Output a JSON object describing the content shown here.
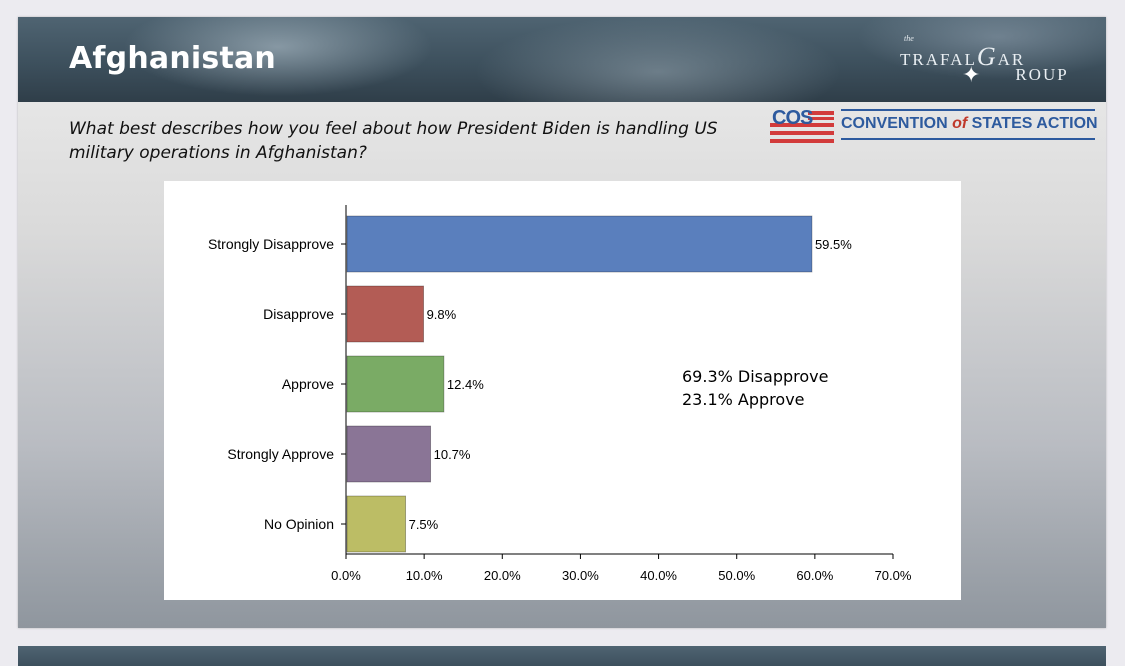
{
  "slide": {
    "title": "Afghanistan",
    "question": "What best describes how you feel about how President Biden is handling US military operations in Afghanistan?"
  },
  "logos": {
    "trafalgar": {
      "the": "the",
      "word1": "TRAFAL",
      "g": "G",
      "word2": "AR",
      "word3": "ROUP"
    },
    "cos": {
      "abbr": "COS",
      "name_part1": "CONVENTION ",
      "name_of": "of",
      "name_part2": " STATES ACTION"
    }
  },
  "note": {
    "line1": "69.3% Disapprove",
    "line2": "23.1% Approve"
  },
  "colors": {
    "strongly_disapprove": "#5a7fbd",
    "disapprove": "#b35c55",
    "approve": "#7aab65",
    "strongly_approve": "#8a7596",
    "no_opinion": "#bcbd65"
  },
  "chart_data": {
    "type": "bar",
    "orientation": "horizontal",
    "categories": [
      "Strongly Disapprove",
      "Disapprove",
      "Approve",
      "Strongly Approve",
      "No Opinion"
    ],
    "values": [
      59.5,
      9.8,
      12.4,
      10.7,
      7.5
    ],
    "value_labels": [
      "59.5%",
      "9.8%",
      "12.4%",
      "10.7%",
      "7.5%"
    ],
    "bar_colors": [
      "#5a7fbd",
      "#b35c55",
      "#7aab65",
      "#8a7596",
      "#bcbd65"
    ],
    "xlim": [
      0,
      70
    ],
    "xticks": [
      0,
      10,
      20,
      30,
      40,
      50,
      60,
      70
    ],
    "xtick_labels": [
      "0.0%",
      "10.0%",
      "20.0%",
      "30.0%",
      "40.0%",
      "50.0%",
      "60.0%",
      "70.0%"
    ],
    "grid": false
  }
}
